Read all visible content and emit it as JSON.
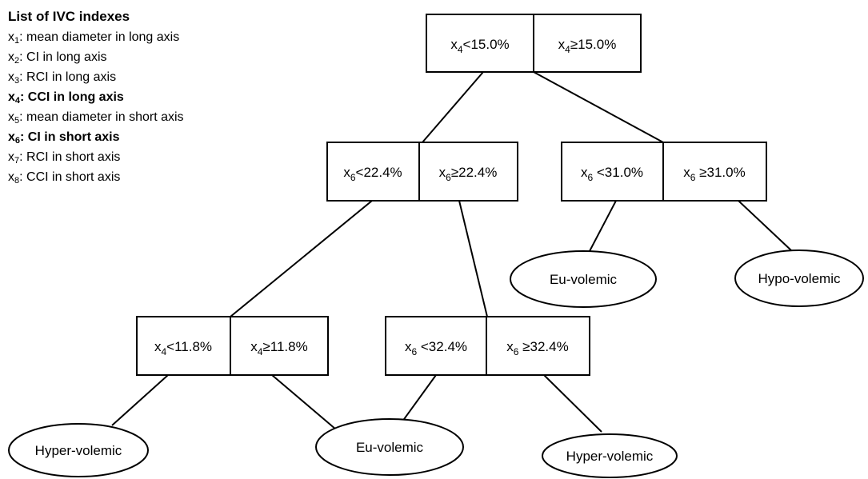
{
  "legend": {
    "title": "List of IVC indexes",
    "items": [
      {
        "var": "x",
        "sub": "1",
        "text": ": mean diameter in long axis",
        "bold": false
      },
      {
        "var": "x",
        "sub": "2",
        "text": ": CI in long axis",
        "bold": false
      },
      {
        "var": "x",
        "sub": "3",
        "text": ": RCI in long axis",
        "bold": false
      },
      {
        "var": "x",
        "sub": "4",
        "text": ": CCI in long axis",
        "bold": true
      },
      {
        "var": "x",
        "sub": "5",
        "text": ": mean diameter in short axis",
        "bold": false
      },
      {
        "var": "x",
        "sub": "6",
        "text": ": CI in short axis",
        "bold": true
      },
      {
        "var": "x",
        "sub": "7",
        "text": ": RCI in short axis",
        "bold": false
      },
      {
        "var": "x",
        "sub": "8",
        "text": ": CCI in short axis",
        "bold": false
      }
    ]
  },
  "tree": {
    "nodes": {
      "root": {
        "left": {
          "var": "x",
          "sub": "4",
          "cond": "<15.0%"
        },
        "right": {
          "var": "x",
          "sub": "4",
          "cond": "≥15.0%"
        }
      },
      "n1": {
        "left": {
          "var": "x",
          "sub": "6",
          "cond": "<22.4%"
        },
        "right": {
          "var": "x",
          "sub": "6",
          "cond": "≥22.4%"
        }
      },
      "n2": {
        "left": {
          "var": "x",
          "sub": "6",
          "cond": " <31.0%"
        },
        "right": {
          "var": "x",
          "sub": "6",
          "cond": " ≥31.0%"
        }
      },
      "n3": {
        "left": {
          "var": "x",
          "sub": "4",
          "cond": "<11.8%"
        },
        "right": {
          "var": "x",
          "sub": "4",
          "cond": "≥11.8%"
        }
      },
      "n4": {
        "left": {
          "var": "x",
          "sub": "6",
          "cond": " <32.4%"
        },
        "right": {
          "var": "x",
          "sub": "6",
          "cond": " ≥32.4%"
        }
      }
    },
    "leaves": {
      "l1": "Eu-volemic",
      "l2": "Hypo-volemic",
      "l3": "Hyper-volemic",
      "l4": "Eu-volemic",
      "l5": "Hyper-volemic"
    }
  }
}
